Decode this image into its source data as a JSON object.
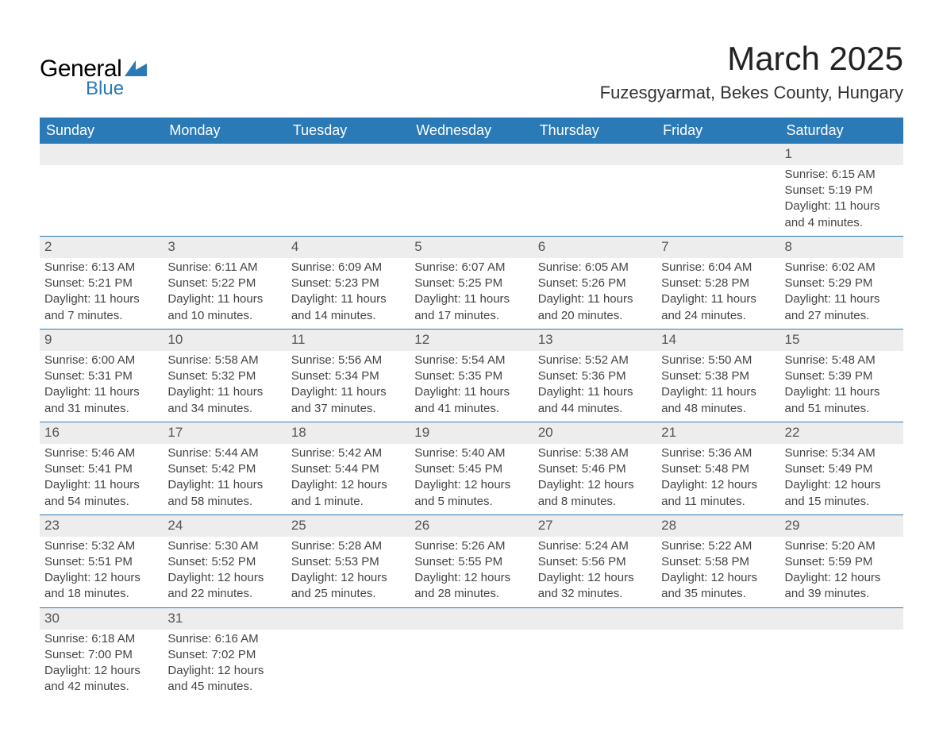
{
  "logo": {
    "text1": "General",
    "text2": "Blue",
    "shape_color": "#2a7ab8"
  },
  "title": "March 2025",
  "subtitle": "Fuzesgyarmat, Bekes County, Hungary",
  "colors": {
    "header_bg": "#2a7ab8",
    "header_text": "#ffffff",
    "daynum_bg": "#ededed",
    "row_divider": "#2a7ab8",
    "text": "#444444"
  },
  "fonts": {
    "title_size": 42,
    "subtitle_size": 22,
    "header_size": 18,
    "cell_size": 15
  },
  "dayHeaders": [
    "Sunday",
    "Monday",
    "Tuesday",
    "Wednesday",
    "Thursday",
    "Friday",
    "Saturday"
  ],
  "weeks": [
    [
      {
        "blank": true
      },
      {
        "blank": true
      },
      {
        "blank": true
      },
      {
        "blank": true
      },
      {
        "blank": true
      },
      {
        "blank": true
      },
      {
        "day": "1",
        "sunrise": "Sunrise: 6:15 AM",
        "sunset": "Sunset: 5:19 PM",
        "daylight1": "Daylight: 11 hours",
        "daylight2": "and 4 minutes."
      }
    ],
    [
      {
        "day": "2",
        "sunrise": "Sunrise: 6:13 AM",
        "sunset": "Sunset: 5:21 PM",
        "daylight1": "Daylight: 11 hours",
        "daylight2": "and 7 minutes."
      },
      {
        "day": "3",
        "sunrise": "Sunrise: 6:11 AM",
        "sunset": "Sunset: 5:22 PM",
        "daylight1": "Daylight: 11 hours",
        "daylight2": "and 10 minutes."
      },
      {
        "day": "4",
        "sunrise": "Sunrise: 6:09 AM",
        "sunset": "Sunset: 5:23 PM",
        "daylight1": "Daylight: 11 hours",
        "daylight2": "and 14 minutes."
      },
      {
        "day": "5",
        "sunrise": "Sunrise: 6:07 AM",
        "sunset": "Sunset: 5:25 PM",
        "daylight1": "Daylight: 11 hours",
        "daylight2": "and 17 minutes."
      },
      {
        "day": "6",
        "sunrise": "Sunrise: 6:05 AM",
        "sunset": "Sunset: 5:26 PM",
        "daylight1": "Daylight: 11 hours",
        "daylight2": "and 20 minutes."
      },
      {
        "day": "7",
        "sunrise": "Sunrise: 6:04 AM",
        "sunset": "Sunset: 5:28 PM",
        "daylight1": "Daylight: 11 hours",
        "daylight2": "and 24 minutes."
      },
      {
        "day": "8",
        "sunrise": "Sunrise: 6:02 AM",
        "sunset": "Sunset: 5:29 PM",
        "daylight1": "Daylight: 11 hours",
        "daylight2": "and 27 minutes."
      }
    ],
    [
      {
        "day": "9",
        "sunrise": "Sunrise: 6:00 AM",
        "sunset": "Sunset: 5:31 PM",
        "daylight1": "Daylight: 11 hours",
        "daylight2": "and 31 minutes."
      },
      {
        "day": "10",
        "sunrise": "Sunrise: 5:58 AM",
        "sunset": "Sunset: 5:32 PM",
        "daylight1": "Daylight: 11 hours",
        "daylight2": "and 34 minutes."
      },
      {
        "day": "11",
        "sunrise": "Sunrise: 5:56 AM",
        "sunset": "Sunset: 5:34 PM",
        "daylight1": "Daylight: 11 hours",
        "daylight2": "and 37 minutes."
      },
      {
        "day": "12",
        "sunrise": "Sunrise: 5:54 AM",
        "sunset": "Sunset: 5:35 PM",
        "daylight1": "Daylight: 11 hours",
        "daylight2": "and 41 minutes."
      },
      {
        "day": "13",
        "sunrise": "Sunrise: 5:52 AM",
        "sunset": "Sunset: 5:36 PM",
        "daylight1": "Daylight: 11 hours",
        "daylight2": "and 44 minutes."
      },
      {
        "day": "14",
        "sunrise": "Sunrise: 5:50 AM",
        "sunset": "Sunset: 5:38 PM",
        "daylight1": "Daylight: 11 hours",
        "daylight2": "and 48 minutes."
      },
      {
        "day": "15",
        "sunrise": "Sunrise: 5:48 AM",
        "sunset": "Sunset: 5:39 PM",
        "daylight1": "Daylight: 11 hours",
        "daylight2": "and 51 minutes."
      }
    ],
    [
      {
        "day": "16",
        "sunrise": "Sunrise: 5:46 AM",
        "sunset": "Sunset: 5:41 PM",
        "daylight1": "Daylight: 11 hours",
        "daylight2": "and 54 minutes."
      },
      {
        "day": "17",
        "sunrise": "Sunrise: 5:44 AM",
        "sunset": "Sunset: 5:42 PM",
        "daylight1": "Daylight: 11 hours",
        "daylight2": "and 58 minutes."
      },
      {
        "day": "18",
        "sunrise": "Sunrise: 5:42 AM",
        "sunset": "Sunset: 5:44 PM",
        "daylight1": "Daylight: 12 hours",
        "daylight2": "and 1 minute."
      },
      {
        "day": "19",
        "sunrise": "Sunrise: 5:40 AM",
        "sunset": "Sunset: 5:45 PM",
        "daylight1": "Daylight: 12 hours",
        "daylight2": "and 5 minutes."
      },
      {
        "day": "20",
        "sunrise": "Sunrise: 5:38 AM",
        "sunset": "Sunset: 5:46 PM",
        "daylight1": "Daylight: 12 hours",
        "daylight2": "and 8 minutes."
      },
      {
        "day": "21",
        "sunrise": "Sunrise: 5:36 AM",
        "sunset": "Sunset: 5:48 PM",
        "daylight1": "Daylight: 12 hours",
        "daylight2": "and 11 minutes."
      },
      {
        "day": "22",
        "sunrise": "Sunrise: 5:34 AM",
        "sunset": "Sunset: 5:49 PM",
        "daylight1": "Daylight: 12 hours",
        "daylight2": "and 15 minutes."
      }
    ],
    [
      {
        "day": "23",
        "sunrise": "Sunrise: 5:32 AM",
        "sunset": "Sunset: 5:51 PM",
        "daylight1": "Daylight: 12 hours",
        "daylight2": "and 18 minutes."
      },
      {
        "day": "24",
        "sunrise": "Sunrise: 5:30 AM",
        "sunset": "Sunset: 5:52 PM",
        "daylight1": "Daylight: 12 hours",
        "daylight2": "and 22 minutes."
      },
      {
        "day": "25",
        "sunrise": "Sunrise: 5:28 AM",
        "sunset": "Sunset: 5:53 PM",
        "daylight1": "Daylight: 12 hours",
        "daylight2": "and 25 minutes."
      },
      {
        "day": "26",
        "sunrise": "Sunrise: 5:26 AM",
        "sunset": "Sunset: 5:55 PM",
        "daylight1": "Daylight: 12 hours",
        "daylight2": "and 28 minutes."
      },
      {
        "day": "27",
        "sunrise": "Sunrise: 5:24 AM",
        "sunset": "Sunset: 5:56 PM",
        "daylight1": "Daylight: 12 hours",
        "daylight2": "and 32 minutes."
      },
      {
        "day": "28",
        "sunrise": "Sunrise: 5:22 AM",
        "sunset": "Sunset: 5:58 PM",
        "daylight1": "Daylight: 12 hours",
        "daylight2": "and 35 minutes."
      },
      {
        "day": "29",
        "sunrise": "Sunrise: 5:20 AM",
        "sunset": "Sunset: 5:59 PM",
        "daylight1": "Daylight: 12 hours",
        "daylight2": "and 39 minutes."
      }
    ],
    [
      {
        "day": "30",
        "sunrise": "Sunrise: 6:18 AM",
        "sunset": "Sunset: 7:00 PM",
        "daylight1": "Daylight: 12 hours",
        "daylight2": "and 42 minutes."
      },
      {
        "day": "31",
        "sunrise": "Sunrise: 6:16 AM",
        "sunset": "Sunset: 7:02 PM",
        "daylight1": "Daylight: 12 hours",
        "daylight2": "and 45 minutes."
      },
      {
        "blank": true
      },
      {
        "blank": true
      },
      {
        "blank": true
      },
      {
        "blank": true
      },
      {
        "blank": true
      }
    ]
  ]
}
